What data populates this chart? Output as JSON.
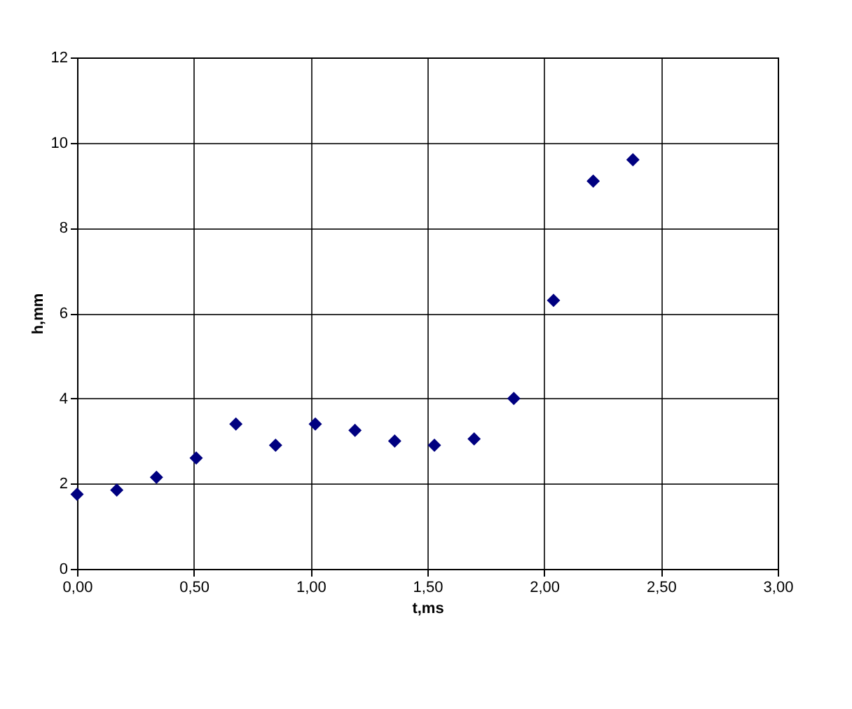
{
  "chart_data": {
    "type": "scatter",
    "xlabel": "t,ms",
    "ylabel": "h,mm",
    "x": [
      0,
      0.17,
      0.34,
      0.51,
      0.68,
      0.85,
      1.02,
      1.19,
      1.36,
      1.53,
      1.7,
      1.87,
      2.04,
      2.21,
      2.38
    ],
    "series": [
      {
        "color": "#000080",
        "values": [
          1.75,
          1.85,
          2.15,
          2.6,
          3.4,
          2.9,
          3.4,
          3.25,
          3.0,
          2.9,
          3.05,
          4.0,
          6.3,
          9.1,
          9.6
        ]
      }
    ],
    "xlim": [
      0,
      3
    ],
    "ylim": [
      0,
      12
    ],
    "xticks": [
      {
        "value": 0,
        "label": "0,00"
      },
      {
        "value": 0.5,
        "label": "0,50"
      },
      {
        "value": 1,
        "label": "1,00"
      },
      {
        "value": 1.5,
        "label": "1,50"
      },
      {
        "value": 2,
        "label": "2,00"
      },
      {
        "value": 2.5,
        "label": "2,50"
      },
      {
        "value": 3,
        "label": "3,00"
      }
    ],
    "yticks": [
      0,
      2,
      4,
      6,
      8,
      10,
      12
    ],
    "grid": true,
    "marker": "diamond"
  }
}
